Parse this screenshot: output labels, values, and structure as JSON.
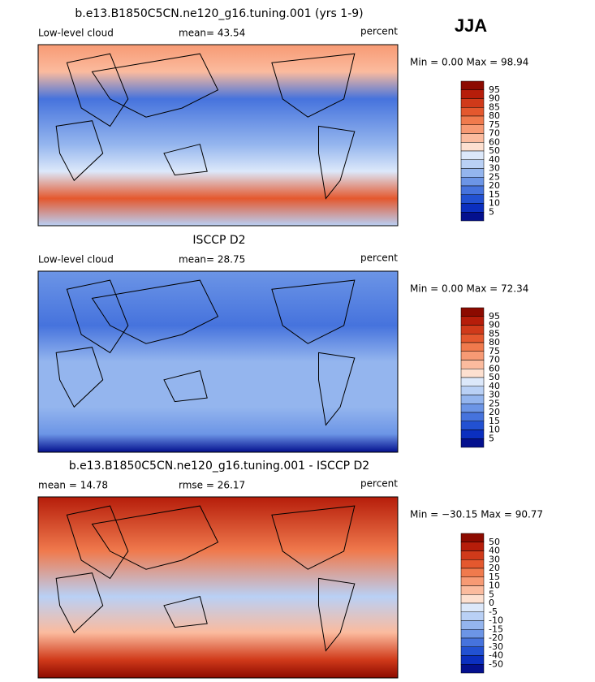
{
  "season": "JJA",
  "colors": [
    "#8c0a00",
    "#b61d0a",
    "#d03a1a",
    "#e4582e",
    "#f07a4d",
    "#f79a74",
    "#fbbb9e",
    "#fde0d0",
    "#dce8fa",
    "#b9d0f5",
    "#94b5ee",
    "#6c95e6",
    "#4673dd",
    "#2251d2",
    "#0b2fbf",
    "#04108e"
  ],
  "panels": [
    {
      "title": "b.e13.B1850C5CN.ne120_g16.tuning.001 (yrs 1-9)",
      "left_label": "Low-level cloud",
      "center_label": "mean=  43.54",
      "right_label": "percent",
      "range": "Min =   0.00 Max =  98.94",
      "levels": [
        95,
        90,
        85,
        80,
        75,
        70,
        60,
        50,
        40,
        30,
        25,
        20,
        15,
        10,
        5
      ]
    },
    {
      "title": "ISCCP D2",
      "left_label": "Low-level cloud",
      "center_label": "mean=  28.75",
      "right_label": "percent",
      "range": "Min =   0.00 Max =  72.34",
      "levels": [
        95,
        90,
        85,
        80,
        75,
        70,
        60,
        50,
        40,
        30,
        25,
        20,
        15,
        10,
        5
      ]
    },
    {
      "title": "b.e13.B1850C5CN.ne120_g16.tuning.001 - ISCCP D2",
      "left_label": "mean =  14.78",
      "center_label": "rmse =  26.17",
      "right_label": "percent",
      "range": "Min = −30.15 Max =  90.77",
      "levels": [
        50,
        40,
        30,
        20,
        15,
        10,
        5,
        0,
        -5,
        -10,
        -15,
        -20,
        -30,
        -40,
        -50
      ]
    }
  ]
}
